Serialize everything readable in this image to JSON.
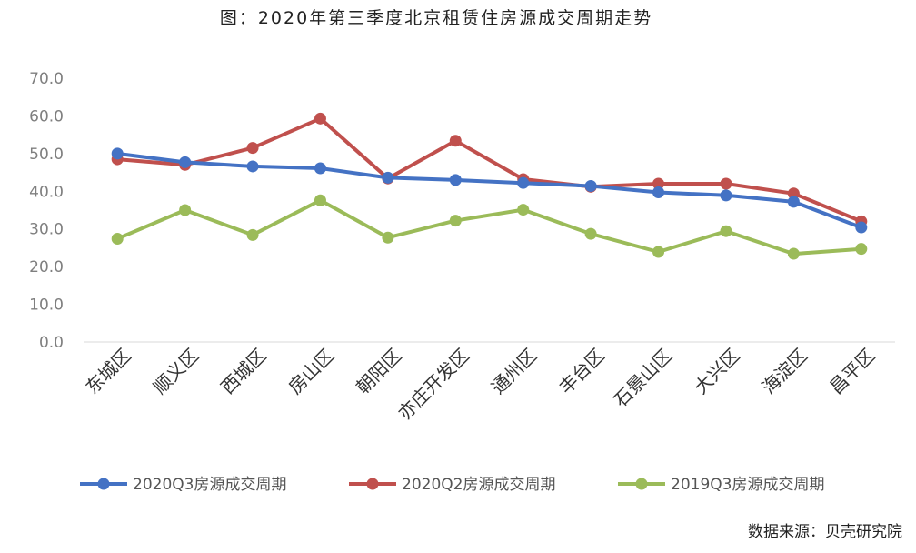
{
  "chart_data": {
    "type": "line",
    "title": "图：2020年第三季度北京租赁住房源成交周期走势",
    "source": "数据来源：贝壳研究院",
    "categories": [
      "东城区",
      "顺义区",
      "西城区",
      "房山区",
      "朝阳区",
      "亦庄开发区",
      "通州区",
      "丰台区",
      "石景山区",
      "大兴区",
      "海淀区",
      "昌平区"
    ],
    "ylim": [
      0,
      70
    ],
    "yticks": [
      "0.0",
      "10.0",
      "20.0",
      "30.0",
      "40.0",
      "50.0",
      "60.0",
      "70.0"
    ],
    "grid": false,
    "legend_position": "bottom",
    "series": [
      {
        "name": "2020Q3房源成交周期",
        "color": "#4472C4",
        "values": [
          50.0,
          47.7,
          46.6,
          46.1,
          43.6,
          43.0,
          42.2,
          41.4,
          39.7,
          38.9,
          37.2,
          30.4
        ]
      },
      {
        "name": "2020Q2房源成交周期",
        "color": "#C0504D",
        "values": [
          48.5,
          47.0,
          51.5,
          59.3,
          43.4,
          53.4,
          43.2,
          41.2,
          42.0,
          42.0,
          39.4,
          32.0
        ]
      },
      {
        "name": "2019Q3房源成交周期",
        "color": "#9BBB59",
        "values": [
          27.4,
          35.0,
          28.4,
          37.6,
          27.7,
          32.2,
          35.1,
          28.7,
          23.9,
          29.4,
          23.4,
          24.7
        ]
      }
    ]
  }
}
